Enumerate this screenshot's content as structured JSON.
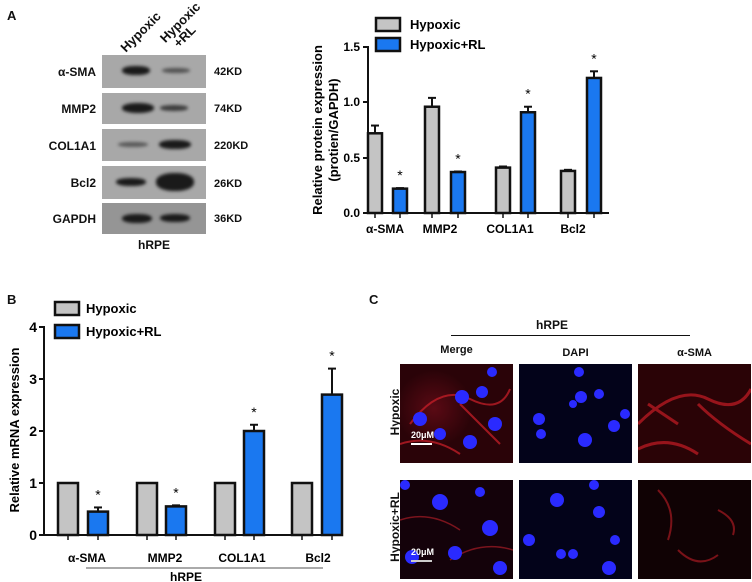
{
  "panels": {
    "A": {
      "letter": "A",
      "blot": {
        "lanes": [
          "Hypoxic",
          "Hypoxic\n+RL"
        ],
        "lane_line1": "Hypoxic",
        "lane2_line1": "Hypoxic",
        "lane2_line2": "+RL",
        "rows": [
          {
            "protein": "α-SMA",
            "size": "42KD"
          },
          {
            "protein": "MMP2",
            "size": "74KD"
          },
          {
            "protein": "COL1A1",
            "size": "220KD"
          },
          {
            "protein": "Bcl2",
            "size": "26KD"
          },
          {
            "protein": "GAPDH",
            "size": "36KD"
          }
        ],
        "cell_line": "hRPE"
      }
    },
    "B": {
      "letter": "B"
    },
    "C": {
      "letter": "C",
      "group_label": "hRPE",
      "columns": [
        "Merge",
        "DAPI",
        "α-SMA"
      ],
      "rows": [
        "Hypoxic",
        "Hypoxic+RL"
      ],
      "scale_bar": "20μM"
    }
  },
  "colors": {
    "hypoxic": "#c4c4c4",
    "hypoxic_rl": "#1a78f0",
    "outline": "#111111"
  },
  "chart_data": [
    {
      "id": "A-protein",
      "type": "bar",
      "title": "",
      "categories": [
        "α-SMA",
        "MMP2",
        "COL1A1",
        "Bcl2"
      ],
      "series": [
        {
          "name": "Hypoxic",
          "values": [
            0.72,
            0.96,
            0.41,
            0.38
          ],
          "errors": [
            0.07,
            0.08,
            0.01,
            0.01
          ]
        },
        {
          "name": "Hypoxic+RL",
          "values": [
            0.22,
            0.37,
            0.91,
            1.22
          ],
          "errors": [
            0.005,
            0.005,
            0.05,
            0.06
          ]
        }
      ],
      "significance": [
        "*",
        "*",
        "*",
        "*"
      ],
      "xlabel": "",
      "ylabel": "Relative protein expression\n(protien/GAPDH)",
      "ylabel_line1": "Relative protein expression",
      "ylabel_line2": "(protien/GAPDH)",
      "ylim": [
        0,
        1.5
      ],
      "yticks": [
        "0.0",
        "0.5",
        "1.0",
        "1.5"
      ],
      "legend": [
        "Hypoxic",
        "Hypoxic+RL"
      ],
      "legend_position": "top",
      "grid": false
    },
    {
      "id": "B-mrna",
      "type": "bar",
      "title": "",
      "categories": [
        "α-SMA",
        "MMP2",
        "COL1A1",
        "Bcl2"
      ],
      "series": [
        {
          "name": "Hypoxic",
          "values": [
            1.0,
            1.0,
            1.0,
            1.0
          ],
          "errors": [
            0,
            0,
            0,
            0
          ]
        },
        {
          "name": "Hypoxic+RL",
          "values": [
            0.45,
            0.55,
            2.0,
            2.7
          ],
          "errors": [
            0.08,
            0.02,
            0.12,
            0.5
          ]
        }
      ],
      "significance": [
        "*",
        "*",
        "*",
        "*"
      ],
      "xlabel": "hRPE",
      "ylabel": "Relative mRNA expression",
      "ylim": [
        0,
        4
      ],
      "yticks": [
        "0",
        "1",
        "2",
        "3",
        "4"
      ],
      "legend": [
        "Hypoxic",
        "Hypoxic+RL"
      ],
      "legend_position": "top-left",
      "grid": false
    }
  ]
}
